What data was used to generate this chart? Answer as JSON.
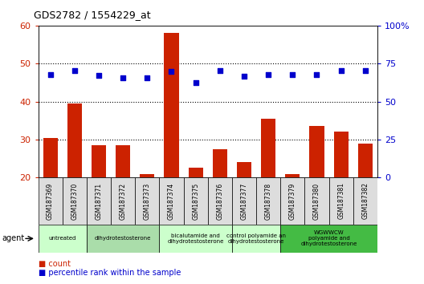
{
  "title": "GDS2782 / 1554229_at",
  "samples": [
    "GSM187369",
    "GSM187370",
    "GSM187371",
    "GSM187372",
    "GSM187373",
    "GSM187374",
    "GSM187375",
    "GSM187376",
    "GSM187377",
    "GSM187378",
    "GSM187379",
    "GSM187380",
    "GSM187381",
    "GSM187382"
  ],
  "counts": [
    30.5,
    39.5,
    28.5,
    28.5,
    21.0,
    58.0,
    22.5,
    27.5,
    24.0,
    35.5,
    21.0,
    33.5,
    32.0,
    29.0
  ],
  "percentiles": [
    67.5,
    70.5,
    67.0,
    65.5,
    65.5,
    70.0,
    62.5,
    70.5,
    66.5,
    67.5,
    67.5,
    67.5,
    70.5,
    70.5
  ],
  "bar_color": "#cc2200",
  "dot_color": "#0000cc",
  "ylim_left": [
    20,
    60
  ],
  "ylim_right": [
    0,
    100
  ],
  "yticks_left": [
    20,
    30,
    40,
    50,
    60
  ],
  "ytick_labels_left": [
    "20",
    "30",
    "40",
    "50",
    "60"
  ],
  "yticks_right": [
    0,
    25,
    50,
    75,
    100
  ],
  "ytick_labels_right": [
    "0",
    "25",
    "50",
    "75",
    "100%"
  ],
  "grid_values": [
    30,
    40,
    50
  ],
  "agent_groups": [
    {
      "label": "untreated",
      "indices": [
        0,
        1
      ],
      "color": "#ccffcc"
    },
    {
      "label": "dihydrotestosterone",
      "indices": [
        2,
        3,
        4
      ],
      "color": "#aaddaa"
    },
    {
      "label": "bicalutamide and\ndihydrotestosterone",
      "indices": [
        5,
        6,
        7
      ],
      "color": "#ccffcc"
    },
    {
      "label": "control polyamide an\ndihydrotestosterone",
      "indices": [
        8,
        9
      ],
      "color": "#ccffcc"
    },
    {
      "label": "WGWWCW\npolyamide and\ndihydrotestosterone",
      "indices": [
        10,
        11,
        12,
        13
      ],
      "color": "#44bb44"
    }
  ],
  "legend_count_label": "count",
  "legend_percentile_label": "percentile rank within the sample",
  "agent_label": "agent",
  "sample_box_color": "#dddddd",
  "background_color": "#ffffff"
}
